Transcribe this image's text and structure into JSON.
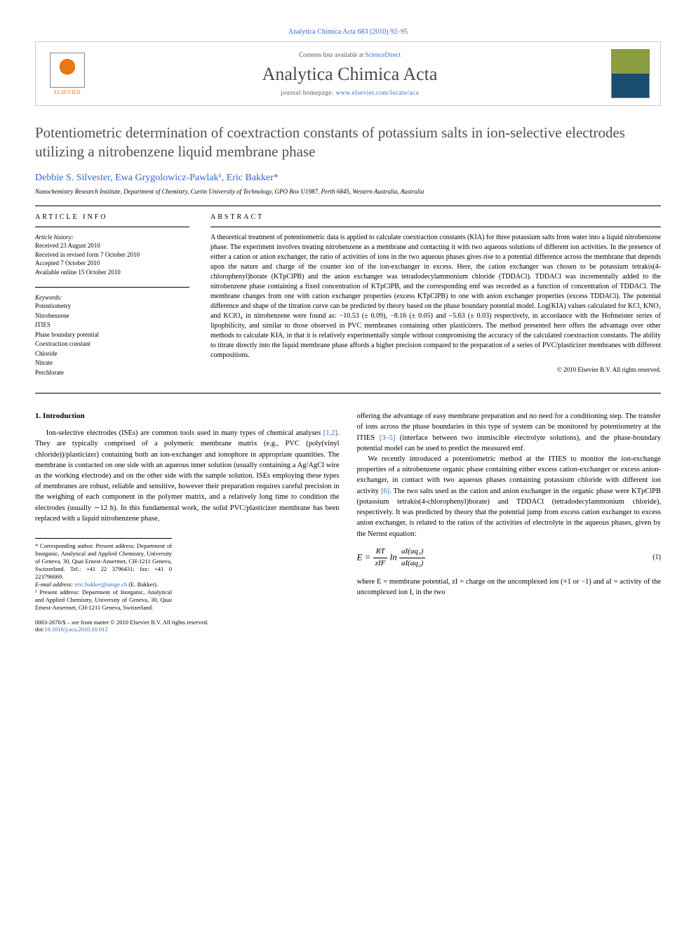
{
  "top_line": "Analytica Chimica Acta 683 (2010) 92–95",
  "header": {
    "contents_prefix": "Contents lists available at ",
    "contents_link": "ScienceDirect",
    "journal_name": "Analytica Chimica Acta",
    "homepage_prefix": "journal homepage: ",
    "homepage_link": "www.elsevier.com/locate/aca",
    "elsevier_label": "ELSEVIER"
  },
  "title": "Potentiometric determination of coextraction constants of potassium salts in ion-selective electrodes utilizing a nitrobenzene liquid membrane phase",
  "authors": "Debbie S. Silvester, Ewa Grygolowicz-Pawlak¹, Eric Bakker*",
  "affiliation": "Nanochemistry Research Institute, Department of Chemistry, Curtin University of Technology, GPO Box U1987, Perth 6845, Western Australia, Australia",
  "article_info": {
    "heading": "ARTICLE INFO",
    "history_label": "Article history:",
    "received": "Received 23 August 2010",
    "revised": "Received in revised form 7 October 2010",
    "accepted": "Accepted 7 October 2010",
    "online": "Available online 15 October 2010",
    "keywords_label": "Keywords:",
    "keywords": [
      "Potentiometry",
      "Nitrobenzene",
      "ITIES",
      "Phase boundary potential",
      "Coextraction constant",
      "Chloride",
      "Nitrate",
      "Perchlorate"
    ]
  },
  "abstract": {
    "heading": "ABSTRACT",
    "text": "A theoretical treatment of potentiometric data is applied to calculate coextraction constants (KIA) for three potassium salts from water into a liquid nitrobenzene phase. The experiment involves treating nitrobenzene as a membrane and contacting it with two aqueous solutions of different ion activities. In the presence of either a cation or anion exchanger, the ratio of activities of ions in the two aqueous phases gives rise to a potential difference across the membrane that depends upon the nature and charge of the counter ion of the ion-exchanger in excess. Here, the cation exchanger was chosen to be potassium tetrakis(4-chlorophenyl)borate (KTpClPB) and the anion exchanger was tetradodecylammonium chloride (TDDACl). TDDACl was incrementally added to the nitrobenzene phase containing a fixed concentration of KTpClPB, and the corresponding emf was recorded as a function of concentration of TDDACl. The membrane changes from one with cation exchanger properties (excess KTpClPB) to one with anion exchanger properties (excess TDDACl). The potential difference and shape of the titration curve can be predicted by theory based on the phase boundary potential model. Log(KIA) values calculated for KCl, KNO₃ and KClO₄ in nitrobenzene were found as: −10.53 (± 0.09), −8.16 (± 0.05) and −5.63 (± 0.03) respectively, in accordance with the Hofmeister series of lipophilicity, and similar to those observed in PVC membranes containing other plasticizers. The method presented here offers the advantage over other methods to calculate KIA, in that it is relatively experimentally simple without compromising the accuracy of the calculated coextraction constants. The ability to titrate directly into the liquid membrane phase affords a higher precision compared to the preparation of a series of PVC/plasticizer membranes with different compositions.",
    "copyright": "© 2010 Elsevier B.V. All rights reserved."
  },
  "body": {
    "section1_title": "1. Introduction",
    "col1_p1": "Ion-selective electrodes (ISEs) are common tools used in many types of chemical analyses [1,2]. They are typically comprised of a polymeric membrane matrix (e.g., PVC (poly(vinyl chloride))/plasticizer) containing both an ion-exchanger and ionophore in appropriate quantities. The membrane is contacted on one side with an aqueous inner solution (usually containing a Ag/AgCl wire as the working electrode) and on the other side with the sample solution. ISEs employing these types of membranes are robust, reliable and sensitive, however their preparation requires careful precision in the weighing of each component in the polymer matrix, and a relatively long time to condition the electrodes (usually ∼12 h). In this fundamental work, the solid PVC/plasticizer membrane has been replaced with a liquid nitrobenzene phase,",
    "col2_p1": "offering the advantage of easy membrane preparation and no need for a conditioning step. The transfer of ions across the phase boundaries in this type of system can be monitored by potentiometry at the ITIES [3–5] (interface between two immiscible electrolyte solutions), and the phase-boundary potential model can be used to predict the measured emf.",
    "col2_p2": "We recently introduced a potentiometric method at the ITIES to monitor the ion-exchange properties of a nitrobenzene organic phase containing either excess cation-exchanger or excess anion-exchanger, in contact with two aqueous phases containing potassium chloride with different ion activity [6]. The two salts used as the cation and anion exchanger in the organic phase were KTpClPB (potassium tetrakis(4-chlorophenyl)borate) and TDDACl (tetradodecylammonium chloride), respectively. It was predicted by theory that the potential jump from excess cation exchanger to excess anion exchanger, is related to the ratios of the activities of electrolyte in the aqueous phases, given by the Nernst equation:",
    "equation": {
      "lhs": "E = ",
      "frac1_num": "RT",
      "frac1_den": "zIF",
      "mid": " ln ",
      "frac2_num": "aI(aq₁)",
      "frac2_den": "aI(aq₂)",
      "number": "(1)"
    },
    "col2_p3": "where E = membrane potential, zI = charge on the uncomplexed ion (+1 or −1) and aI = activity of the uncomplexed ion I, in the two"
  },
  "footnotes": {
    "corresponding": "* Corresponding author. Present address: Department of Inorganic, Analytical and Applied Chemistry, University of Geneva, 30, Quai Ernest-Ansermet, CH-1211 Geneva, Switzerland. Tel.: +41 22 3796431; fax: +41 0 223796069.",
    "email_label": "E-mail address: ",
    "email": "eric.bakker@unige.ch",
    "email_suffix": " (E. Bakker).",
    "note1": "¹ Present address: Department of Inorganic, Analytical and Applied Chemistry, University of Geneva, 30, Quai Ernest-Ansermet, CH-1211 Geneva, Switzerland."
  },
  "footer": {
    "line1": "0003-2670/$ – see front matter © 2010 Elsevier B.V. All rights reserved.",
    "doi_label": "doi:",
    "doi": "10.1016/j.aca.2010.10.012"
  },
  "colors": {
    "link": "#3366cc",
    "text": "#000000",
    "heading_gray": "#505050",
    "elsevier_orange": "#e67817"
  }
}
